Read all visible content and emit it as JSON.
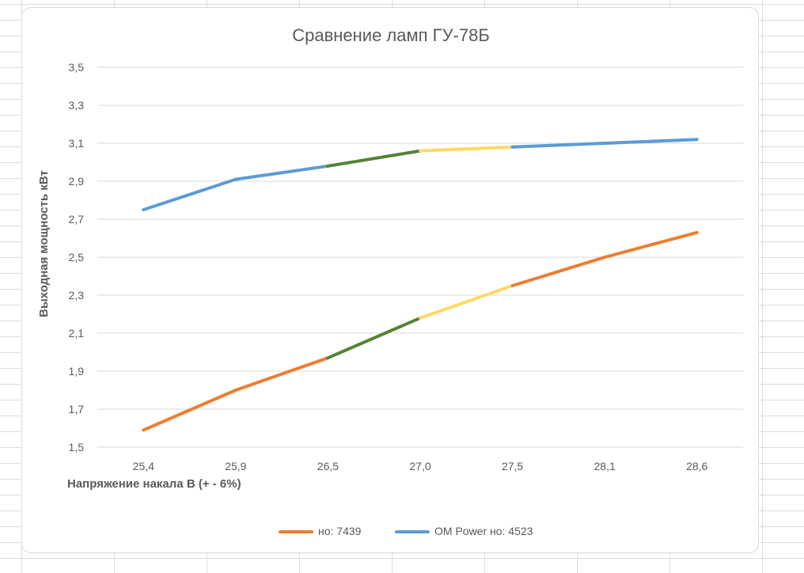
{
  "chart_data": {
    "type": "line",
    "title": "Сравнение ламп ГУ-78Б",
    "xlabel": "Напряжение накала В (+ - 6%)",
    "ylabel": "Выходная мощность кВт",
    "categories": [
      "25,4",
      "25,9",
      "26,5",
      "27,0",
      "27,5",
      "28,1",
      "28,6"
    ],
    "ylim": [
      1.5,
      3.5
    ],
    "y_ticks": [
      "1,5",
      "1,7",
      "1,9",
      "2,1",
      "2,3",
      "2,5",
      "2,7",
      "2,9",
      "3,1",
      "3,3",
      "3,5"
    ],
    "grid": true,
    "legend_position": "bottom",
    "series": [
      {
        "name": "но: 7439",
        "color": "#ED7D31",
        "values": [
          1.59,
          1.8,
          1.97,
          2.18,
          2.35,
          2.5,
          2.63
        ],
        "segment_colors": [
          "#ED7D31",
          "#ED7D31",
          "#548235",
          "#FFD966",
          "#ED7D31",
          "#ED7D31"
        ]
      },
      {
        "name": "OM Power но: 4523",
        "color": "#5B9BD5",
        "values": [
          2.75,
          2.91,
          2.98,
          3.06,
          3.08,
          3.1,
          3.12
        ],
        "segment_colors": [
          "#5B9BD5",
          "#5B9BD5",
          "#548235",
          "#FFD966",
          "#5B9BD5",
          "#5B9BD5"
        ]
      }
    ]
  }
}
